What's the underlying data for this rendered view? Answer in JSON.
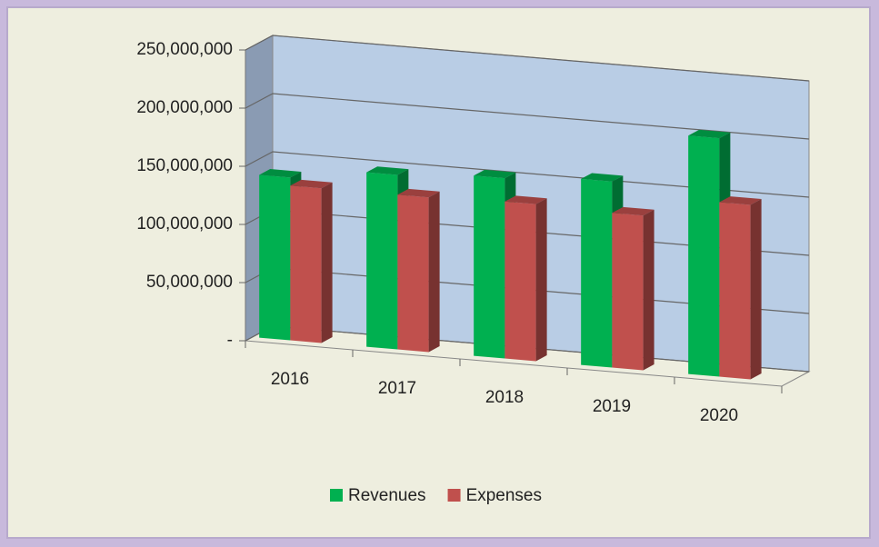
{
  "chart_data": {
    "type": "bar3d",
    "categories": [
      "2016",
      "2017",
      "2018",
      "2019",
      "2020"
    ],
    "series": [
      {
        "name": "Revenues",
        "color": "#00b050",
        "values": [
          140000000,
          150000000,
          155000000,
          160000000,
          205000000
        ]
      },
      {
        "name": "Expenses",
        "color": "#c0504d",
        "values": [
          133000000,
          133000000,
          135000000,
          133000000,
          150000000
        ]
      }
    ],
    "ylim": [
      0,
      250000000
    ],
    "yticks": [
      {
        "value": 0,
        "label": "-"
      },
      {
        "value": 50000000,
        "label": "50,000,000"
      },
      {
        "value": 100000000,
        "label": "100,000,000"
      },
      {
        "value": 150000000,
        "label": "150,000,000"
      },
      {
        "value": 200000000,
        "label": "200,000,000"
      },
      {
        "value": 250000000,
        "label": "250,000,000"
      }
    ],
    "grid": true,
    "legend": "bottom"
  }
}
